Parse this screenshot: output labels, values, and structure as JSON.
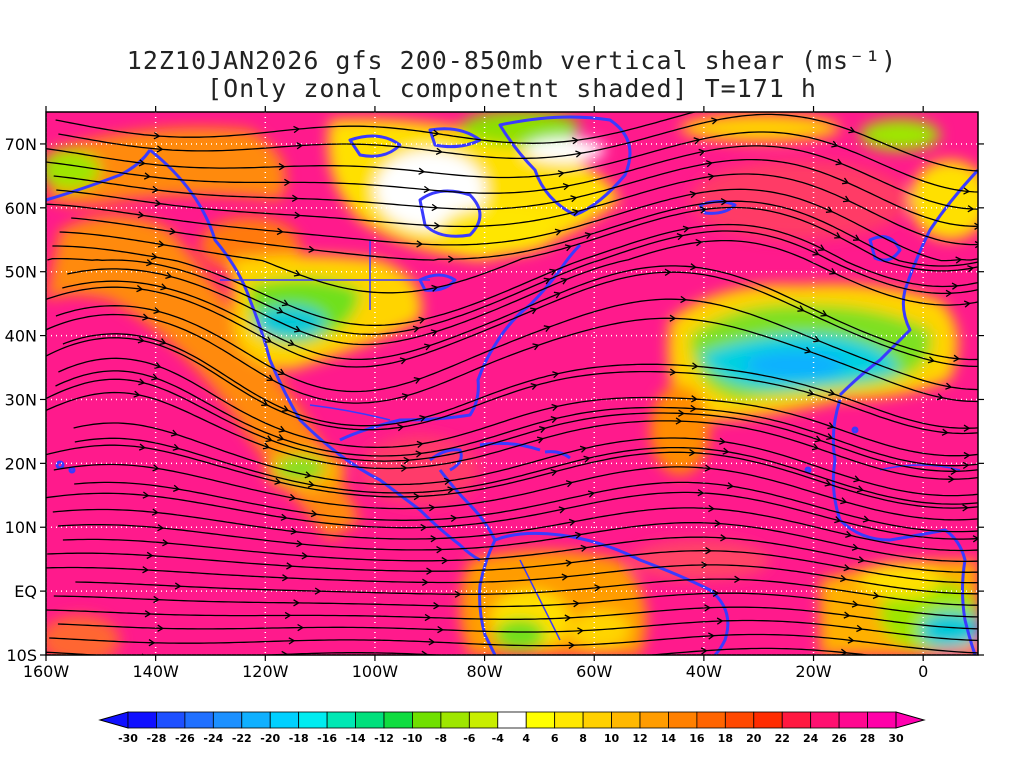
{
  "title": {
    "line1": "12Z10JAN2026 gfs 200-850mb vertical shear (ms⁻¹)",
    "line2": "[Only zonal componetnt shaded] T=171 h"
  },
  "axes": {
    "lon_labels": [
      "160W",
      "140W",
      "120W",
      "100W",
      "80W",
      "60W",
      "40W",
      "20W",
      "0"
    ],
    "lat_labels": [
      "70N",
      "60N",
      "50N",
      "40N",
      "30N",
      "20N",
      "10N",
      "EQ",
      "10S"
    ]
  },
  "colorbar": {
    "labels": [
      "-30",
      "-28",
      "-26",
      "-24",
      "-22",
      "-20",
      "-18",
      "-16",
      "-14",
      "-12",
      "-10",
      "-8",
      "-6",
      "-4",
      "4",
      "6",
      "8",
      "10",
      "12",
      "14",
      "16",
      "18",
      "20",
      "22",
      "24",
      "26",
      "28",
      "30"
    ],
    "colors": [
      "#1010ff",
      "#1e50ff",
      "#2070ff",
      "#1c90ff",
      "#10b0ff",
      "#00d0ff",
      "#00ecf0",
      "#00e8b4",
      "#00e07c",
      "#10dc40",
      "#70e000",
      "#9ee600",
      "#c8ee00",
      "#ffffff",
      "#ffff00",
      "#ffe800",
      "#ffd000",
      "#ffb800",
      "#ff9c00",
      "#ff8000",
      "#ff6400",
      "#ff4800",
      "#ff2c00",
      "#ff1840",
      "#ff1070",
      "#ff0890",
      "#ff00a8"
    ],
    "low_color": "#1010ff",
    "high_color": "#ff00b0"
  },
  "map_colors": {
    "magenta": "#ff1493",
    "hot": "#ff3a6e",
    "orange": "#ff8c00",
    "yellow": "#ffe000",
    "green": "#6fe01a",
    "cyan": "#00c8d8",
    "blue": "#3070ff",
    "coast": "#3a3aff",
    "grid": "#ffffff"
  }
}
